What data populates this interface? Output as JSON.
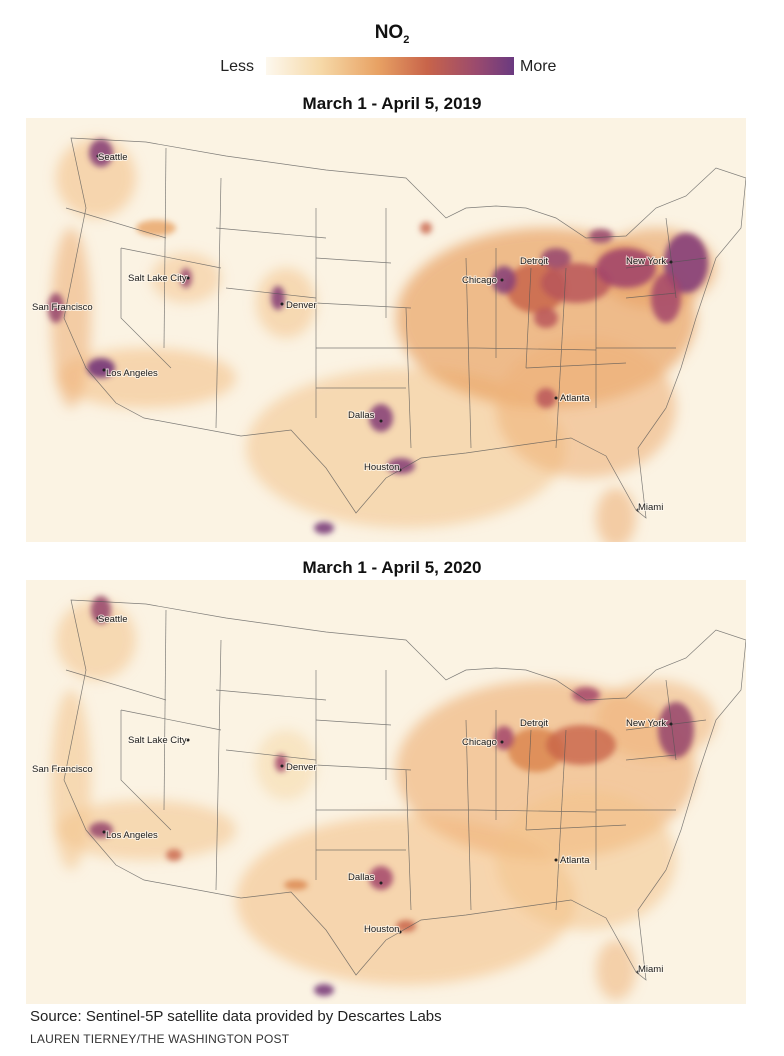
{
  "legend": {
    "title": "NO",
    "title_sub": "2",
    "less_label": "Less",
    "more_label": "More",
    "gradient_colors": [
      "#fdf8ee",
      "#f6d9a8",
      "#e8a264",
      "#c8644a",
      "#9a4a6e",
      "#6a3a80"
    ]
  },
  "panels": [
    {
      "title": "March 1 - April 5, 2019",
      "cities": [
        "Seattle",
        "Salt Lake City",
        "San Francisco",
        "Denver",
        "Los Angeles",
        "Chicago",
        "Detroit",
        "New York",
        "Dallas",
        "Atlanta",
        "Houston",
        "Miami"
      ]
    },
    {
      "title": "March 1 - April 5, 2020",
      "cities": [
        "Seattle",
        "Salt Lake City",
        "San Francisco",
        "Denver",
        "Los Angeles",
        "Chicago",
        "Detroit",
        "New York",
        "Dallas",
        "Atlanta",
        "Houston",
        "Miami"
      ]
    }
  ],
  "footer": {
    "source": "Source: Sentinel-5P satellite data provided by Descartes Labs",
    "credit": "LAUREN TIERNEY/THE WASHINGTON POST"
  },
  "colors": {
    "background": "#fbf3e3",
    "low": "#f3c28a",
    "mid": "#d9824a",
    "high": "#a3456a",
    "highest": "#6a3a80",
    "borders": "#555555"
  }
}
